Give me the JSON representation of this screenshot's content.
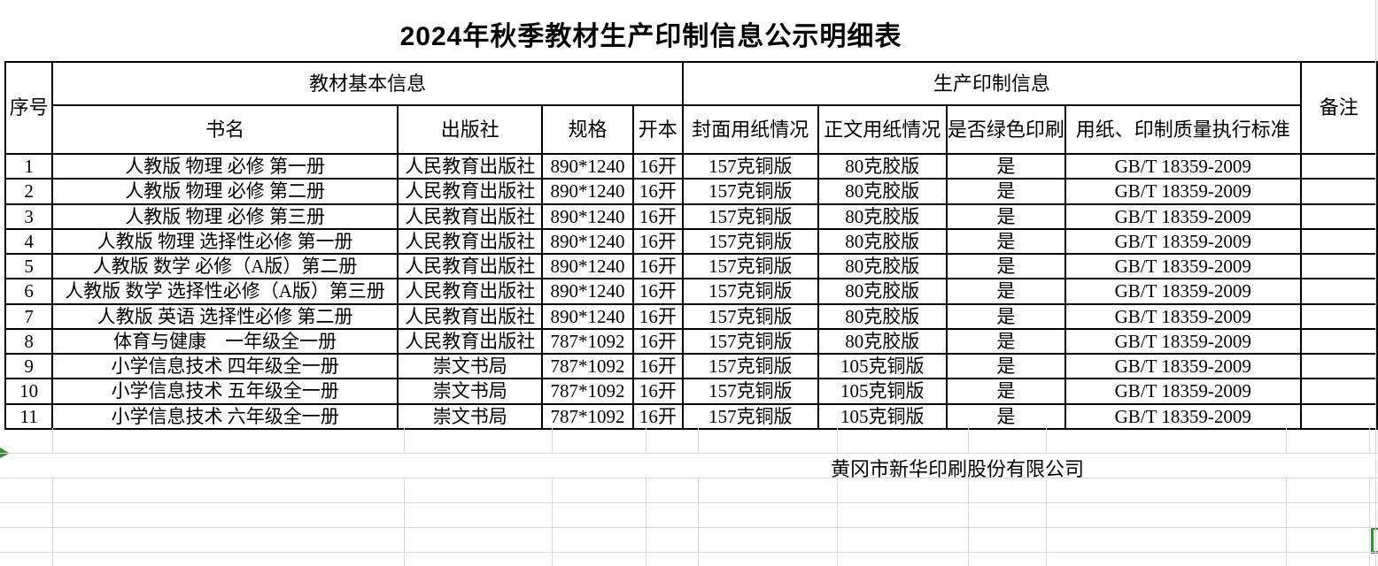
{
  "title": "2024年秋季教材生产印制信息公示明细表",
  "table": {
    "group_headers": {
      "basic": "教材基本信息",
      "production": "生产印制信息"
    },
    "columns": {
      "index": "序号",
      "book_name": "书名",
      "publisher": "出版社",
      "spec": "规格",
      "format": "开本",
      "cover_paper": "封面用纸情况",
      "body_paper": "正文用纸情况",
      "green_print": "是否绿色印刷",
      "standard": "用纸、印制质量执行标准",
      "remark": "备注"
    },
    "rows": [
      {
        "index": "1",
        "book_name": "人教版 物理 必修 第一册",
        "publisher": "人民教育出版社",
        "spec": "890*1240",
        "format": "16开",
        "cover_paper": "157克铜版",
        "body_paper": "80克胶版",
        "green_print": "是",
        "standard": "GB/T 18359-2009",
        "remark": ""
      },
      {
        "index": "2",
        "book_name": "人教版 物理 必修 第二册",
        "publisher": "人民教育出版社",
        "spec": "890*1240",
        "format": "16开",
        "cover_paper": "157克铜版",
        "body_paper": "80克胶版",
        "green_print": "是",
        "standard": "GB/T 18359-2009",
        "remark": ""
      },
      {
        "index": "3",
        "book_name": "人教版 物理 必修 第三册",
        "publisher": "人民教育出版社",
        "spec": "890*1240",
        "format": "16开",
        "cover_paper": "157克铜版",
        "body_paper": "80克胶版",
        "green_print": "是",
        "standard": "GB/T 18359-2009",
        "remark": ""
      },
      {
        "index": "4",
        "book_name": "人教版 物理 选择性必修 第一册",
        "publisher": "人民教育出版社",
        "spec": "890*1240",
        "format": "16开",
        "cover_paper": "157克铜版",
        "body_paper": "80克胶版",
        "green_print": "是",
        "standard": "GB/T 18359-2009",
        "remark": ""
      },
      {
        "index": "5",
        "book_name": "人教版 数学 必修（A版）第二册",
        "publisher": "人民教育出版社",
        "spec": "890*1240",
        "format": "16开",
        "cover_paper": "157克铜版",
        "body_paper": "80克胶版",
        "green_print": "是",
        "standard": "GB/T 18359-2009",
        "remark": ""
      },
      {
        "index": "6",
        "book_name": "人教版 数学 选择性必修（A版）第三册",
        "publisher": "人民教育出版社",
        "spec": "890*1240",
        "format": "16开",
        "cover_paper": "157克铜版",
        "body_paper": "80克胶版",
        "green_print": "是",
        "standard": "GB/T 18359-2009",
        "remark": ""
      },
      {
        "index": "7",
        "book_name": "人教版 英语 选择性必修 第二册",
        "publisher": "人民教育出版社",
        "spec": "890*1240",
        "format": "16开",
        "cover_paper": "157克铜版",
        "body_paper": "80克胶版",
        "green_print": "是",
        "standard": "GB/T 18359-2009",
        "remark": ""
      },
      {
        "index": "8",
        "book_name": "体育与健康　一年级全一册",
        "publisher": "人民教育出版社",
        "spec": "787*1092",
        "format": "16开",
        "cover_paper": "157克铜版",
        "body_paper": "80克胶版",
        "green_print": "是",
        "standard": "GB/T 18359-2009",
        "remark": ""
      },
      {
        "index": "9",
        "book_name": "小学信息技术 四年级全一册",
        "publisher": "崇文书局",
        "spec": "787*1092",
        "format": "16开",
        "cover_paper": "157克铜版",
        "body_paper": "105克铜版",
        "green_print": "是",
        "standard": "GB/T 18359-2009",
        "remark": ""
      },
      {
        "index": "10",
        "book_name": "小学信息技术 五年级全一册",
        "publisher": "崇文书局",
        "spec": "787*1092",
        "format": "16开",
        "cover_paper": "157克铜版",
        "body_paper": "105克铜版",
        "green_print": "是",
        "standard": "GB/T 18359-2009",
        "remark": ""
      },
      {
        "index": "11",
        "book_name": "小学信息技术 六年级全一册",
        "publisher": "崇文书局",
        "spec": "787*1092",
        "format": "16开",
        "cover_paper": "157克铜版",
        "body_paper": "105克铜版",
        "green_print": "是",
        "standard": "GB/T 18359-2009",
        "remark": ""
      }
    ]
  },
  "footer": {
    "company": "黄冈市新华印刷股份有限公司"
  },
  "colors": {
    "accent_green": "#3c8c3c",
    "grid_line": "#d9d9d9",
    "table_border": "#000000"
  }
}
